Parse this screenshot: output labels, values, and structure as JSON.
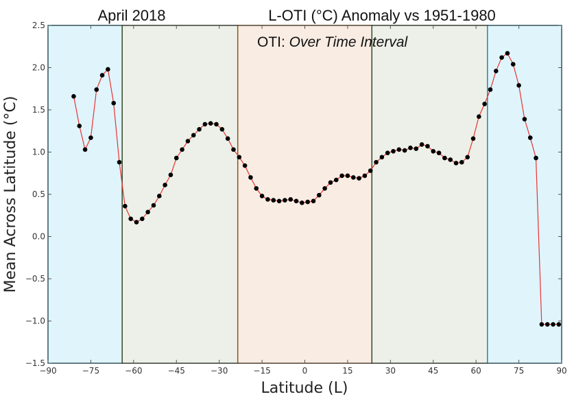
{
  "chart_data": {
    "type": "line",
    "title_left": "April 2018",
    "title": "L-OTI (°C) Anomaly vs 1951-1980",
    "annotation": {
      "prefix": "OTI: ",
      "text": "Over Time Interval"
    },
    "xlabel": "Latitude",
    "xlabel_unit": "(L)",
    "ylabel": "Mean Across Latitude (°C)",
    "xlim": [
      -90,
      90
    ],
    "ylim": [
      -1.5,
      2.5
    ],
    "xticks": [
      -90,
      -75,
      -60,
      -45,
      -30,
      -15,
      0,
      15,
      30,
      45,
      60,
      75,
      90
    ],
    "yticks": [
      "2.5",
      "2.0",
      "1.5",
      "1.0",
      "0.5",
      "0.0",
      "-0.5",
      "-1.0",
      "-1.5"
    ],
    "grid": false,
    "line_color": "#e8322f",
    "marker_color": "#000000",
    "bands": [
      {
        "from": -90,
        "to": -64,
        "color": "#e0f4fc",
        "edge": "#2b8ea6"
      },
      {
        "from": -64,
        "to": -23.5,
        "color": "#edf0e8",
        "edge": "#3a4a2a"
      },
      {
        "from": -23.5,
        "to": 23.5,
        "color": "#f8ece3",
        "edge": "#8a5a22"
      },
      {
        "from": 23.5,
        "to": 64,
        "color": "#edf0e8",
        "edge": "#3a4a2a"
      },
      {
        "from": 64,
        "to": 90,
        "color": "#e0f4fc",
        "edge": "#2b8ea6"
      }
    ],
    "x": [
      -81,
      -79,
      -77,
      -75,
      -73,
      -71,
      -69,
      -67,
      -65,
      -63,
      -61,
      -59,
      -57,
      -55,
      -53,
      -51,
      -49,
      -47,
      -45,
      -43,
      -41,
      -39,
      -37,
      -35,
      -33,
      -31,
      -29,
      -27,
      -25,
      -23,
      -21,
      -19,
      -17,
      -15,
      -13,
      -11,
      -9,
      -7,
      -5,
      -3,
      -1,
      1,
      3,
      5,
      7,
      9,
      11,
      13,
      15,
      17,
      19,
      21,
      23,
      25,
      27,
      29,
      31,
      33,
      35,
      37,
      39,
      41,
      43,
      45,
      47,
      49,
      51,
      53,
      55,
      57,
      59,
      61,
      63,
      65,
      67,
      69,
      71,
      73,
      75,
      77,
      79,
      81,
      83,
      85,
      87,
      89
    ],
    "y": [
      1.66,
      1.31,
      1.03,
      1.17,
      1.74,
      1.91,
      1.98,
      1.58,
      0.88,
      0.36,
      0.21,
      0.17,
      0.21,
      0.29,
      0.37,
      0.48,
      0.61,
      0.73,
      0.93,
      1.03,
      1.13,
      1.2,
      1.27,
      1.33,
      1.34,
      1.33,
      1.27,
      1.16,
      1.03,
      0.94,
      0.84,
      0.7,
      0.57,
      0.48,
      0.44,
      0.43,
      0.42,
      0.43,
      0.44,
      0.42,
      0.4,
      0.41,
      0.42,
      0.49,
      0.57,
      0.64,
      0.67,
      0.72,
      0.72,
      0.7,
      0.69,
      0.72,
      0.78,
      0.88,
      0.94,
      0.99,
      1.01,
      1.03,
      1.02,
      1.05,
      1.04,
      1.09,
      1.07,
      1.01,
      0.99,
      0.93,
      0.91,
      0.87,
      0.88,
      0.94,
      1.16,
      1.42,
      1.57,
      1.74,
      1.96,
      2.12,
      2.17,
      2.04,
      1.79,
      1.39,
      1.17,
      0.93,
      -1.04,
      -1.04,
      -1.04,
      -1.04
    ]
  }
}
